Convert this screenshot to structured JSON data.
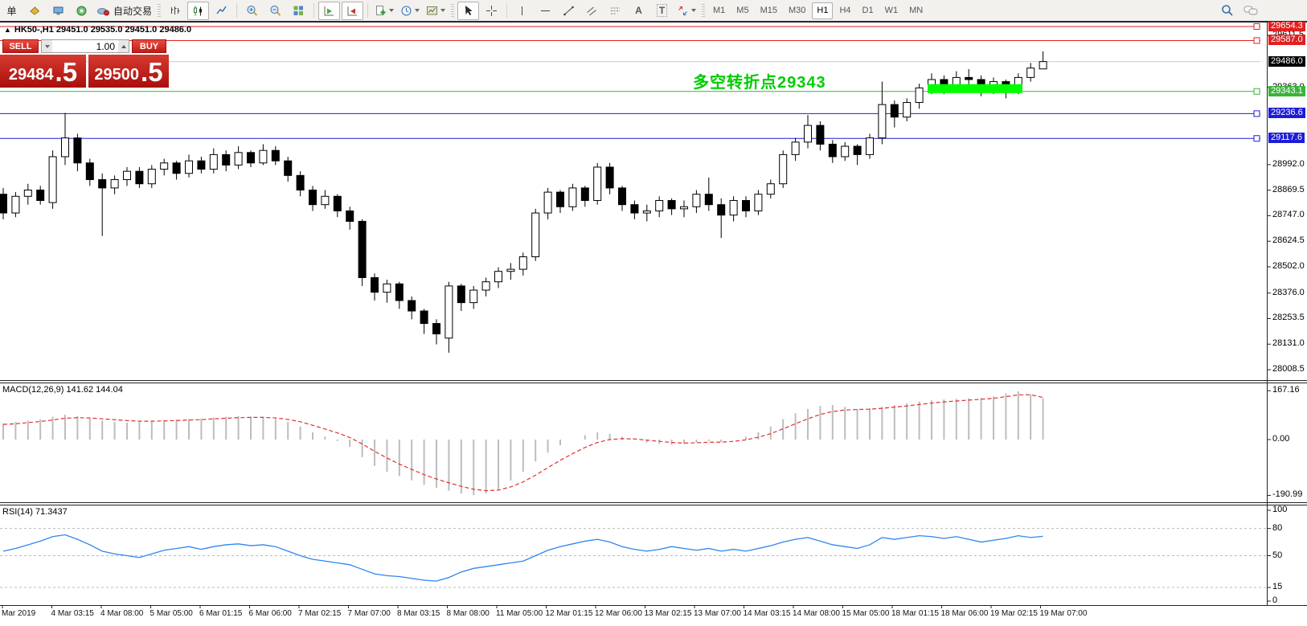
{
  "toolbar": {
    "left_partial_label": "单",
    "autotrading_label": "自动交易",
    "timeframes": [
      "M1",
      "M5",
      "M15",
      "M30",
      "H1",
      "H4",
      "D1",
      "W1",
      "MN"
    ],
    "active_timeframe": "H1",
    "tool_letters": {
      "text": "A",
      "label": "T"
    }
  },
  "chart": {
    "collapse_icon": "▲",
    "title": "HK50-,H1 29451.0 29535.0 29451.0 29486.0",
    "annotation": "多空转折点29343",
    "annotation_color": "#00cc00"
  },
  "trade_panel": {
    "sell": {
      "label": "SELL",
      "price_main": "29484",
      "price_frac": ".5"
    },
    "buy": {
      "label": "BUY",
      "price_main": "29500",
      "price_frac": ".5"
    },
    "volume": "1.00"
  },
  "indicators": {
    "macd_label": "MACD(12,26,9) 141.62 144.04",
    "rsi_label": "RSI(14) 71.3437"
  },
  "chart_data": {
    "type": "candlestick",
    "symbol": "HK50-",
    "timeframe": "H1",
    "ohlc_display": {
      "open": "29451.0",
      "high": "29535.0",
      "low": "29451.0",
      "close": "29486.0"
    },
    "price_axis": {
      "ticks": [
        29611.5,
        29363.0,
        28992.0,
        28869.5,
        28747.0,
        28624.5,
        28502.0,
        28376.0,
        28253.5,
        28131.0,
        28008.5
      ],
      "labels": [
        {
          "value": 29654.3,
          "text": "29654.3",
          "color": "#e02020",
          "type": "line"
        },
        {
          "value": 29587.0,
          "text": "29587.0",
          "color": "#e02020",
          "type": "line"
        },
        {
          "value": 29486.0,
          "text": "29486.0",
          "color": "#000000",
          "type": "current"
        },
        {
          "value": 29343.1,
          "text": "29343.1",
          "color": "#3cb33c",
          "type": "line"
        },
        {
          "value": 29236.6,
          "text": "29236.6",
          "color": "#1d1dd6",
          "type": "line"
        },
        {
          "value": 29117.6,
          "text": "29117.6",
          "color": "#1d1dd6",
          "type": "line"
        }
      ]
    },
    "candles": [
      [
        28850,
        28880,
        28730,
        28760
      ],
      [
        28760,
        28860,
        28740,
        28840
      ],
      [
        28840,
        28900,
        28800,
        28870
      ],
      [
        28870,
        28890,
        28800,
        28820
      ],
      [
        28810,
        29060,
        28780,
        29030
      ],
      [
        29030,
        29240,
        28990,
        29120
      ],
      [
        29120,
        29140,
        28960,
        29000
      ],
      [
        29000,
        29020,
        28890,
        28920
      ],
      [
        28920,
        28950,
        28650,
        28880
      ],
      [
        28880,
        28940,
        28850,
        28920
      ],
      [
        28920,
        28980,
        28890,
        28960
      ],
      [
        28960,
        28980,
        28880,
        28900
      ],
      [
        28900,
        28990,
        28880,
        28970
      ],
      [
        28970,
        29020,
        28940,
        29000
      ],
      [
        29000,
        29010,
        28920,
        28950
      ],
      [
        28950,
        29040,
        28930,
        29010
      ],
      [
        29010,
        29030,
        28950,
        28970
      ],
      [
        28970,
        29070,
        28950,
        29040
      ],
      [
        29040,
        29060,
        28960,
        28990
      ],
      [
        28990,
        29080,
        28970,
        29050
      ],
      [
        29050,
        29060,
        28980,
        29000
      ],
      [
        29000,
        29090,
        28990,
        29060
      ],
      [
        29060,
        29080,
        28990,
        29010
      ],
      [
        29010,
        29030,
        28910,
        28940
      ],
      [
        28940,
        28960,
        28840,
        28870
      ],
      [
        28870,
        28890,
        28770,
        28800
      ],
      [
        28800,
        28870,
        28780,
        28840
      ],
      [
        28840,
        28850,
        28740,
        28770
      ],
      [
        28770,
        28790,
        28680,
        28720
      ],
      [
        28720,
        28730,
        28410,
        28450
      ],
      [
        28450,
        28470,
        28340,
        28380
      ],
      [
        28380,
        28440,
        28330,
        28420
      ],
      [
        28420,
        28430,
        28300,
        28340
      ],
      [
        28340,
        28360,
        28250,
        28290
      ],
      [
        28290,
        28300,
        28180,
        28230
      ],
      [
        28230,
        28250,
        28130,
        28180
      ],
      [
        28160,
        28430,
        28090,
        28410
      ],
      [
        28410,
        28420,
        28290,
        28330
      ],
      [
        28330,
        28410,
        28300,
        28390
      ],
      [
        28390,
        28450,
        28360,
        28430
      ],
      [
        28430,
        28500,
        28400,
        28480
      ],
      [
        28480,
        28520,
        28440,
        28490
      ],
      [
        28490,
        28570,
        28460,
        28550
      ],
      [
        28550,
        28780,
        28530,
        28760
      ],
      [
        28760,
        28880,
        28730,
        28860
      ],
      [
        28860,
        28870,
        28760,
        28790
      ],
      [
        28790,
        28900,
        28770,
        28880
      ],
      [
        28880,
        28890,
        28790,
        28820
      ],
      [
        28820,
        29000,
        28800,
        28980
      ],
      [
        28980,
        29000,
        28850,
        28880
      ],
      [
        28880,
        28890,
        28770,
        28800
      ],
      [
        28800,
        28820,
        28730,
        28760
      ],
      [
        28760,
        28800,
        28720,
        28770
      ],
      [
        28770,
        28840,
        28740,
        28820
      ],
      [
        28820,
        28830,
        28750,
        28780
      ],
      [
        28780,
        28820,
        28740,
        28790
      ],
      [
        28790,
        28870,
        28760,
        28850
      ],
      [
        28850,
        28930,
        28770,
        28800
      ],
      [
        28800,
        28830,
        28640,
        28750
      ],
      [
        28750,
        28840,
        28720,
        28820
      ],
      [
        28820,
        28840,
        28740,
        28770
      ],
      [
        28770,
        28870,
        28750,
        28850
      ],
      [
        28850,
        28920,
        28830,
        28900
      ],
      [
        28900,
        29060,
        28880,
        29040
      ],
      [
        29040,
        29120,
        29010,
        29100
      ],
      [
        29100,
        29230,
        29070,
        29180
      ],
      [
        29180,
        29200,
        29060,
        29090
      ],
      [
        29090,
        29110,
        29000,
        29030
      ],
      [
        29030,
        29100,
        29010,
        29080
      ],
      [
        29080,
        29090,
        28990,
        29040
      ],
      [
        29040,
        29140,
        29020,
        29120
      ],
      [
        29120,
        29390,
        29090,
        29280
      ],
      [
        29280,
        29300,
        29170,
        29220
      ],
      [
        29220,
        29310,
        29200,
        29290
      ],
      [
        29290,
        29380,
        29260,
        29360
      ],
      [
        29360,
        29430,
        29330,
        29400
      ],
      [
        29400,
        29420,
        29330,
        29360
      ],
      [
        29360,
        29440,
        29340,
        29410
      ],
      [
        29410,
        29450,
        29370,
        29400
      ],
      [
        29400,
        29420,
        29320,
        29350
      ],
      [
        29350,
        29410,
        29330,
        29390
      ],
      [
        29390,
        29400,
        29310,
        29350
      ],
      [
        29350,
        29430,
        29330,
        29410
      ],
      [
        29410,
        29480,
        29390,
        29455
      ],
      [
        29451,
        29535,
        29451,
        29486
      ]
    ],
    "highlight_bar": {
      "from_candle": 75,
      "to_candle": 82,
      "price_top": 29378,
      "price_bottom": 29335,
      "color": "#00ff00"
    },
    "macd": {
      "values": [
        55,
        60,
        65,
        70,
        78,
        85,
        80,
        72,
        65,
        60,
        58,
        60,
        63,
        65,
        68,
        70,
        72,
        75,
        78,
        80,
        78,
        75,
        70,
        60,
        45,
        25,
        10,
        -5,
        -25,
        -60,
        -90,
        -110,
        -125,
        -140,
        -155,
        -165,
        -175,
        -185,
        -190,
        -185,
        -170,
        -140,
        -110,
        -75,
        -45,
        -20,
        0,
        15,
        25,
        20,
        10,
        0,
        -10,
        -15,
        -18,
        -15,
        -10,
        -5,
        -8,
        0,
        10,
        25,
        45,
        70,
        90,
        105,
        115,
        118,
        112,
        105,
        108,
        112,
        118,
        124,
        130,
        134,
        137,
        139,
        141,
        143,
        148,
        158,
        165,
        155,
        141.62
      ],
      "signal": [
        52,
        54,
        58,
        62,
        67,
        73,
        75,
        74,
        71,
        68,
        65,
        63,
        63,
        64,
        65,
        67,
        68,
        71,
        73,
        75,
        76,
        76,
        74,
        69,
        61,
        49,
        36,
        23,
        7,
        -15,
        -40,
        -63,
        -84,
        -102,
        -120,
        -135,
        -148,
        -160,
        -170,
        -175,
        -173,
        -162,
        -145,
        -122,
        -96,
        -71,
        -48,
        -27,
        -10,
        0,
        3,
        2,
        -2,
        -6,
        -10,
        -12,
        -11,
        -9,
        -9,
        -6,
        -1,
        8,
        20,
        37,
        54,
        71,
        86,
        96,
        101,
        103,
        104,
        107,
        111,
        115,
        120,
        125,
        129,
        132,
        135,
        138,
        141,
        147,
        153,
        153.5,
        144.04
      ],
      "axis_ticks": [
        167.16,
        0,
        -190.99
      ],
      "histogram_color": "#bdbdbd",
      "signal_color": "#e03030"
    },
    "rsi": {
      "values": [
        55,
        58,
        62,
        66,
        71,
        73,
        68,
        62,
        55,
        52,
        50,
        48,
        52,
        56,
        58,
        60,
        57,
        60,
        62,
        63,
        61,
        62,
        60,
        55,
        50,
        46,
        44,
        42,
        40,
        35,
        30,
        28,
        27,
        25,
        23,
        22,
        26,
        32,
        36,
        38,
        40,
        42,
        44,
        50,
        56,
        60,
        63,
        66,
        68,
        65,
        60,
        57,
        55,
        57,
        60,
        58,
        56,
        58,
        55,
        57,
        55,
        58,
        61,
        65,
        68,
        70,
        66,
        62,
        60,
        58,
        62,
        70,
        68,
        70,
        72,
        71,
        69,
        71,
        68,
        65,
        67,
        69,
        72,
        70,
        71.34
      ],
      "levels": [
        80,
        50,
        15
      ],
      "axis_ticks": [
        100,
        80,
        50,
        15,
        0
      ],
      "line_color": "#2e86f0"
    },
    "time_axis": [
      "Mar 2019",
      "4 Mar 03:15",
      "4 Mar 08:00",
      "5 Mar 05:00",
      "6 Mar 01:15",
      "6 Mar 06:00",
      "7 Mar 02:15",
      "7 Mar 07:00",
      "8 Mar 03:15",
      "8 Mar 08:00",
      "11 Mar 05:00",
      "12 Mar 01:15",
      "12 Mar 06:00",
      "13 Mar 02:15",
      "13 Mar 07:00",
      "14 Mar 03:15",
      "14 Mar 08:00",
      "15 Mar 05:00",
      "18 Mar 01:15",
      "18 Mar 06:00",
      "19 Mar 02:15",
      "19 Mar 07:00"
    ]
  }
}
